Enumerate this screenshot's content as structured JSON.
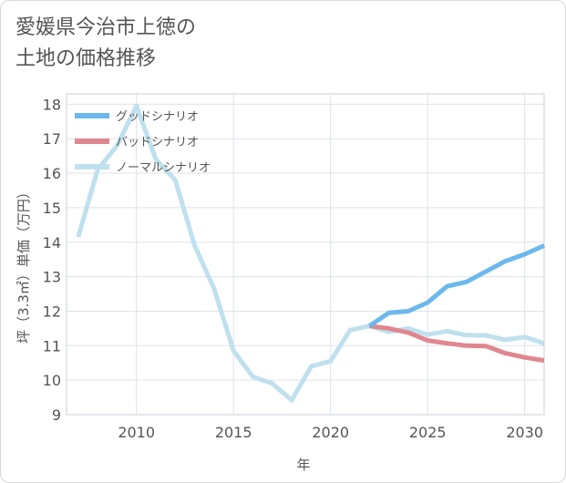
{
  "title_lines": [
    "愛媛県今治市上徳の",
    "土地の価格推移"
  ],
  "chart_data": {
    "type": "line",
    "xlabel": "年",
    "ylabel": "坪（3.3㎡）単価（万円）",
    "xlim": [
      2006.4,
      2031
    ],
    "ylim": [
      9,
      18.3
    ],
    "x_ticks": [
      2010,
      2015,
      2020,
      2025,
      2030
    ],
    "y_ticks": [
      9,
      10,
      11,
      12,
      13,
      14,
      15,
      16,
      17,
      18
    ],
    "grid": true,
    "legend_position": "top-left",
    "series": [
      {
        "name": "グッドシナリオ",
        "color": "#6cb8ec",
        "x": [
          2022,
          2023,
          2024,
          2025,
          2026,
          2027,
          2028,
          2029,
          2030,
          2031
        ],
        "values": [
          11.57,
          11.95,
          12.0,
          12.25,
          12.72,
          12.85,
          13.15,
          13.45,
          13.65,
          13.9
        ]
      },
      {
        "name": "バッドシナリオ",
        "color": "#e0868f",
        "x": [
          2022,
          2023,
          2024,
          2025,
          2026,
          2027,
          2028,
          2029,
          2030,
          2031
        ],
        "values": [
          11.57,
          11.5,
          11.38,
          11.15,
          11.07,
          11.0,
          10.99,
          10.78,
          10.66,
          10.57
        ]
      },
      {
        "name": "ノーマルシナリオ",
        "color": "#bfe0ee",
        "x": [
          2007,
          2008,
          2009,
          2010,
          2011,
          2012,
          2013,
          2014,
          2015,
          2016,
          2017,
          2018,
          2019,
          2020,
          2021,
          2022,
          2023,
          2024,
          2025,
          2026,
          2027,
          2028,
          2029,
          2030,
          2031
        ],
        "values": [
          14.15,
          16.1,
          16.8,
          17.95,
          16.4,
          15.8,
          13.9,
          12.65,
          10.85,
          10.1,
          9.9,
          9.42,
          10.4,
          10.55,
          11.45,
          11.57,
          11.4,
          11.5,
          11.32,
          11.42,
          11.3,
          11.3,
          11.17,
          11.25,
          11.07
        ]
      }
    ]
  }
}
